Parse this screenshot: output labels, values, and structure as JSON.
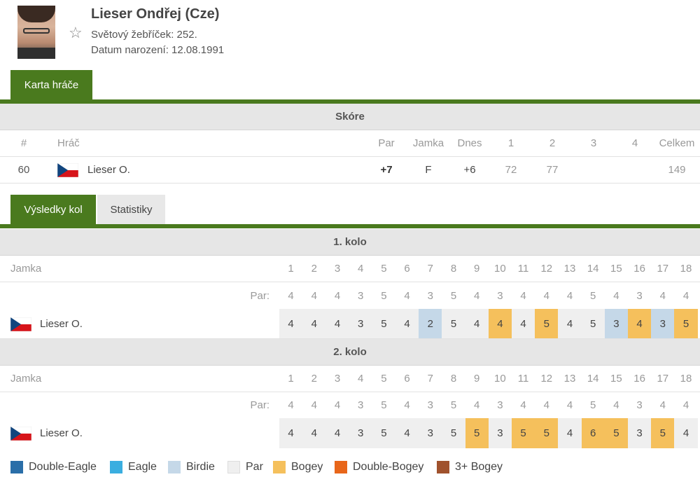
{
  "player": {
    "name": "Lieser Ondřej (Cze)",
    "rank": "Světový žebříček: 252.",
    "dob": "Datum narození: 12.08.1991"
  },
  "tabs_top": [
    {
      "label": "Karta hráče",
      "active": true
    }
  ],
  "score": {
    "title": "Skóre",
    "headers": [
      "#",
      "Hráč",
      "Par",
      "Jamka",
      "Dnes",
      "1",
      "2",
      "3",
      "4",
      "Celkem"
    ],
    "row": {
      "pos": "60",
      "player": "Lieser O.",
      "par": "+7",
      "hole": "F",
      "today": "+6",
      "r1": "72",
      "r2": "77",
      "r3": "",
      "r4": "",
      "total": "149"
    }
  },
  "tabs_results": [
    {
      "label": "Výsledky kol",
      "active": true
    },
    {
      "label": "Statistiky",
      "active": false
    }
  ],
  "rounds": [
    {
      "title": "1. kolo",
      "hole_label": "Jamka",
      "par_label": "Par:",
      "holes": [
        "1",
        "2",
        "3",
        "4",
        "5",
        "6",
        "7",
        "8",
        "9",
        "10",
        "11",
        "12",
        "13",
        "14",
        "15",
        "16",
        "17",
        "18"
      ],
      "pars": [
        "4",
        "4",
        "4",
        "3",
        "5",
        "4",
        "3",
        "5",
        "4",
        "3",
        "4",
        "4",
        "4",
        "5",
        "4",
        "3",
        "4",
        "4"
      ],
      "player": "Lieser O.",
      "scores": [
        "4",
        "4",
        "4",
        "3",
        "5",
        "4",
        "2",
        "5",
        "4",
        "4",
        "4",
        "5",
        "4",
        "5",
        "3",
        "4",
        "3",
        "5"
      ],
      "types": [
        "par",
        "par",
        "par",
        "par",
        "par",
        "par",
        "birdie",
        "par",
        "par",
        "bogey",
        "par",
        "bogey",
        "par",
        "par",
        "birdie",
        "bogey",
        "birdie",
        "bogey"
      ]
    },
    {
      "title": "2. kolo",
      "hole_label": "Jamka",
      "par_label": "Par:",
      "holes": [
        "1",
        "2",
        "3",
        "4",
        "5",
        "6",
        "7",
        "8",
        "9",
        "10",
        "11",
        "12",
        "13",
        "14",
        "15",
        "16",
        "17",
        "18"
      ],
      "pars": [
        "4",
        "4",
        "4",
        "3",
        "5",
        "4",
        "3",
        "5",
        "4",
        "3",
        "4",
        "4",
        "4",
        "5",
        "4",
        "3",
        "4",
        "4"
      ],
      "player": "Lieser O.",
      "scores": [
        "4",
        "4",
        "4",
        "3",
        "5",
        "4",
        "3",
        "5",
        "5",
        "3",
        "5",
        "5",
        "4",
        "6",
        "5",
        "3",
        "5",
        "4"
      ],
      "types": [
        "par",
        "par",
        "par",
        "par",
        "par",
        "par",
        "par",
        "par",
        "bogey",
        "par",
        "bogey",
        "bogey",
        "par",
        "bogey",
        "bogey",
        "par",
        "bogey",
        "par"
      ]
    }
  ],
  "colors": {
    "double_eagle": "#2a6ea8",
    "eagle": "#3aaee0",
    "birdie": "#c5d8e8",
    "par": "#efefef",
    "bogey": "#f5c05c",
    "double_bogey": "#e8661a",
    "triple_bogey": "#a0522d",
    "accent": "#4a7a1e"
  },
  "legend": [
    {
      "label": "Double-Eagle",
      "color": "#2a6ea8"
    },
    {
      "label": "Eagle",
      "color": "#3aaee0"
    },
    {
      "label": "Birdie",
      "color": "#c5d8e8"
    },
    {
      "label": "Par",
      "color": "#efefef"
    },
    {
      "label": "Bogey",
      "color": "#f5c05c"
    },
    {
      "label": "Double-Bogey",
      "color": "#e8661a"
    },
    {
      "label": "3+ Bogey",
      "color": "#a0522d"
    }
  ]
}
